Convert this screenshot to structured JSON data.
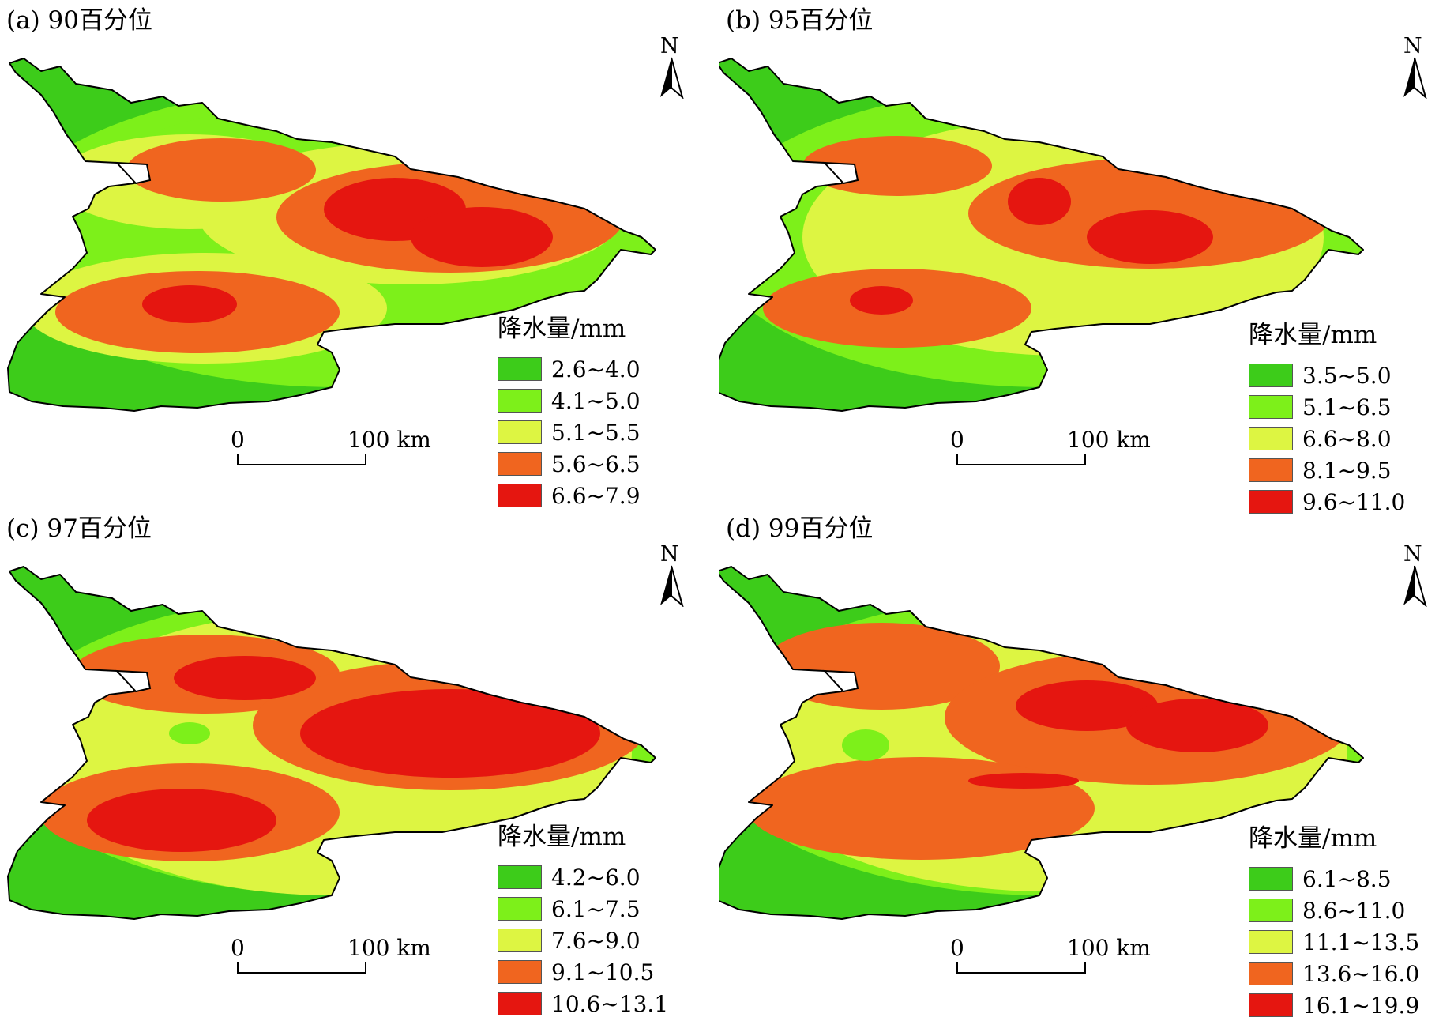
{
  "palette": {
    "dark_green": "#3DCC1A",
    "light_green": "#7DF01A",
    "yellow_green": "#DDF542",
    "orange": "#F0651F",
    "red": "#E51610"
  },
  "north_label": "N",
  "scale_bar": {
    "start_label": "0",
    "end_label": "100 km"
  },
  "panels": [
    {
      "title": "(a) 90百分位",
      "legend_title": "降水量/mm",
      "classes": [
        "2.6~4.0",
        "4.1~5.0",
        "5.1~5.5",
        "5.6~6.5",
        "6.6~7.9"
      ]
    },
    {
      "title": "(b) 95百分位",
      "legend_title": "降水量/mm",
      "classes": [
        "3.5~5.0",
        "5.1~6.5",
        "6.6~8.0",
        "8.1~9.5",
        "9.6~11.0"
      ]
    },
    {
      "title": "(c) 97百分位",
      "legend_title": "降水量/mm",
      "classes": [
        "4.2~6.0",
        "6.1~7.5",
        "7.6~9.0",
        "9.1~10.5",
        "10.6~13.1"
      ]
    },
    {
      "title": "(d) 99百分位",
      "legend_title": "降水量/mm",
      "classes": [
        "6.1~8.5",
        "8.6~11.0",
        "11.1~13.5",
        "13.6~16.0",
        "16.1~19.9"
      ]
    }
  ]
}
